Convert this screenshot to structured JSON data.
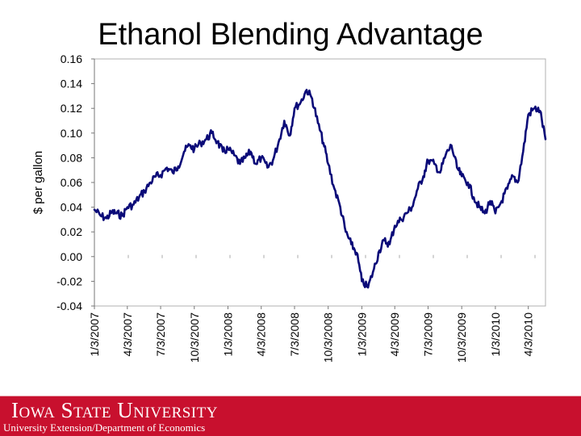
{
  "slide": {
    "title": "Ethanol Blending Advantage",
    "footer_university": "Iowa State University",
    "footer_subtitle": "University Extension/Department of Economics",
    "footer_color": "#c8102e"
  },
  "chart_data": {
    "type": "line",
    "title": "",
    "ylabel": "$ per gallon",
    "xlabel": "",
    "ylim": [
      -0.04,
      0.16
    ],
    "xlim": [
      "2007-01-03",
      "2010-05-20"
    ],
    "grid": false,
    "line_color": "#0a0a78",
    "yticks": [
      "0.16",
      "0.14",
      "0.12",
      "0.10",
      "0.08",
      "0.06",
      "0.04",
      "0.02",
      "0.00",
      "-0.02",
      "-0.04"
    ],
    "xticks": [
      "1/3/2007",
      "4/3/2007",
      "7/3/2007",
      "10/3/2007",
      "1/3/2008",
      "4/3/2008",
      "7/3/2008",
      "10/3/2008",
      "1/3/2009",
      "4/3/2009",
      "7/3/2009",
      "10/3/2009",
      "1/3/2010",
      "4/3/2010"
    ],
    "series": [
      {
        "x": [
          "2007-01-03",
          "2007-01-20",
          "2007-02-05",
          "2007-02-20",
          "2007-03-05",
          "2007-03-20",
          "2007-04-03",
          "2007-04-20",
          "2007-05-05",
          "2007-05-20",
          "2007-06-05",
          "2007-06-20",
          "2007-07-03",
          "2007-07-20",
          "2007-08-05",
          "2007-08-20",
          "2007-09-05",
          "2007-09-20",
          "2007-10-03",
          "2007-10-20",
          "2007-11-05",
          "2007-11-20",
          "2007-12-05",
          "2007-12-20",
          "2008-01-03",
          "2008-01-20",
          "2008-02-05",
          "2008-02-20",
          "2008-03-05",
          "2008-03-20",
          "2008-04-03",
          "2008-04-20",
          "2008-05-05",
          "2008-05-20",
          "2008-06-05",
          "2008-06-20",
          "2008-07-03",
          "2008-07-20",
          "2008-08-05",
          "2008-08-20",
          "2008-09-05",
          "2008-09-20",
          "2008-10-03",
          "2008-10-20",
          "2008-11-05",
          "2008-11-20",
          "2008-12-05",
          "2008-12-20",
          "2009-01-03",
          "2009-01-20",
          "2009-02-05",
          "2009-02-20",
          "2009-03-05",
          "2009-03-20",
          "2009-04-03",
          "2009-04-20",
          "2009-05-05",
          "2009-05-20",
          "2009-06-05",
          "2009-06-20",
          "2009-07-03",
          "2009-07-20",
          "2009-08-05",
          "2009-08-20",
          "2009-09-05",
          "2009-09-20",
          "2009-10-03",
          "2009-10-20",
          "2009-11-05",
          "2009-11-20",
          "2009-12-05",
          "2009-12-20",
          "2010-01-03",
          "2010-01-20",
          "2010-02-05",
          "2010-02-20",
          "2010-03-05",
          "2010-03-20",
          "2010-04-03",
          "2010-04-20",
          "2010-05-05",
          "2010-05-20"
        ],
        "values": [
          0.038,
          0.033,
          0.031,
          0.036,
          0.035,
          0.033,
          0.04,
          0.042,
          0.048,
          0.053,
          0.06,
          0.065,
          0.066,
          0.072,
          0.068,
          0.073,
          0.085,
          0.09,
          0.087,
          0.092,
          0.095,
          0.1,
          0.093,
          0.085,
          0.087,
          0.082,
          0.075,
          0.08,
          0.085,
          0.075,
          0.08,
          0.072,
          0.078,
          0.092,
          0.11,
          0.098,
          0.12,
          0.125,
          0.135,
          0.128,
          0.108,
          0.092,
          0.075,
          0.055,
          0.04,
          0.02,
          0.01,
          0.003,
          -0.02,
          -0.025,
          -0.01,
          0.005,
          0.013,
          0.01,
          0.025,
          0.03,
          0.035,
          0.04,
          0.055,
          0.065,
          0.078,
          0.075,
          0.068,
          0.082,
          0.09,
          0.072,
          0.065,
          0.06,
          0.048,
          0.04,
          0.035,
          0.045,
          0.035,
          0.045,
          0.055,
          0.065,
          0.06,
          0.085,
          0.115,
          0.12,
          0.118,
          0.095
        ]
      }
    ]
  }
}
